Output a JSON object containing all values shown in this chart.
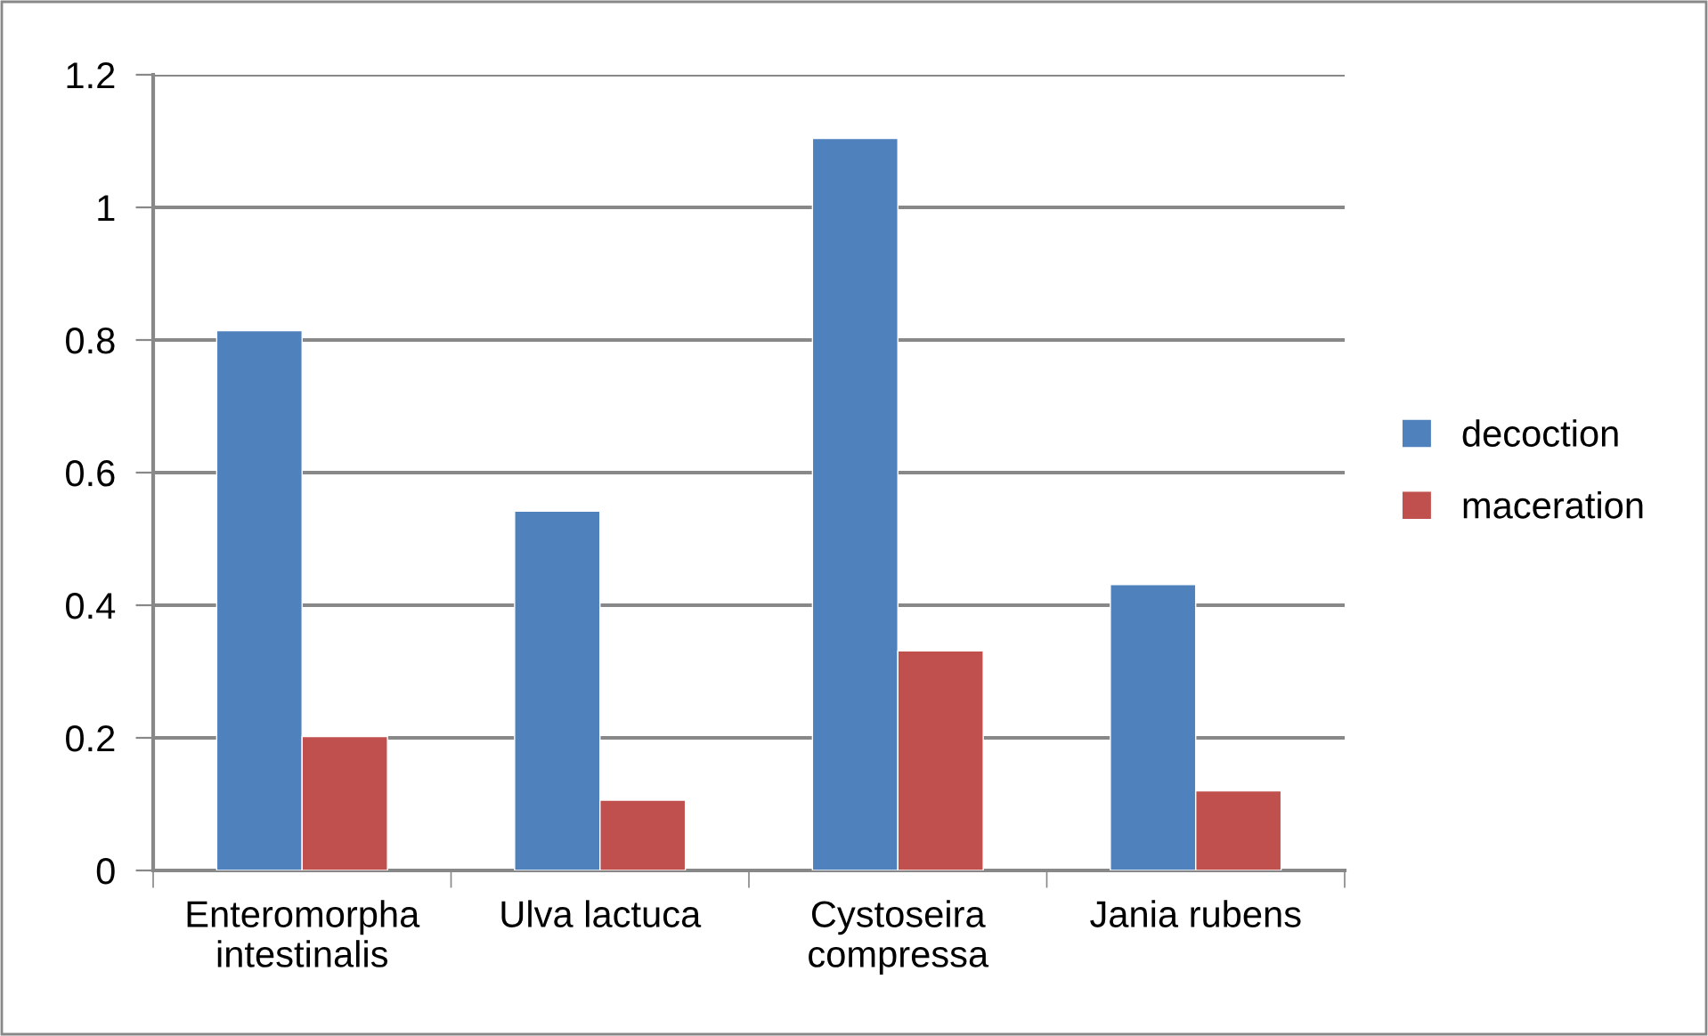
{
  "chart_data": {
    "type": "bar",
    "categories": [
      "Enteromorpha\nintestinalis",
      "Ulva lactuca",
      "Cystoseira\ncompressa",
      "Jania rubens"
    ],
    "series": [
      {
        "name": "decoction",
        "color": "#4f81bd",
        "values": [
          0.814,
          0.542,
          1.104,
          0.431
        ]
      },
      {
        "name": "maceration",
        "color": "#c0504d",
        "values": [
          0.202,
          0.106,
          0.331,
          0.12
        ]
      }
    ],
    "ylim": [
      0,
      1.2
    ],
    "yticks": [
      0,
      {
        "value": 0.2,
        "label": "0.2"
      },
      {
        "value": 0.4,
        "label": "0.4"
      },
      {
        "value": 0.6,
        "label": "0.6"
      },
      {
        "value": 0.8,
        "label": "0.8"
      },
      1,
      {
        "value": 1.2,
        "label": "1.2"
      }
    ],
    "grid": "y",
    "legend": "right"
  }
}
